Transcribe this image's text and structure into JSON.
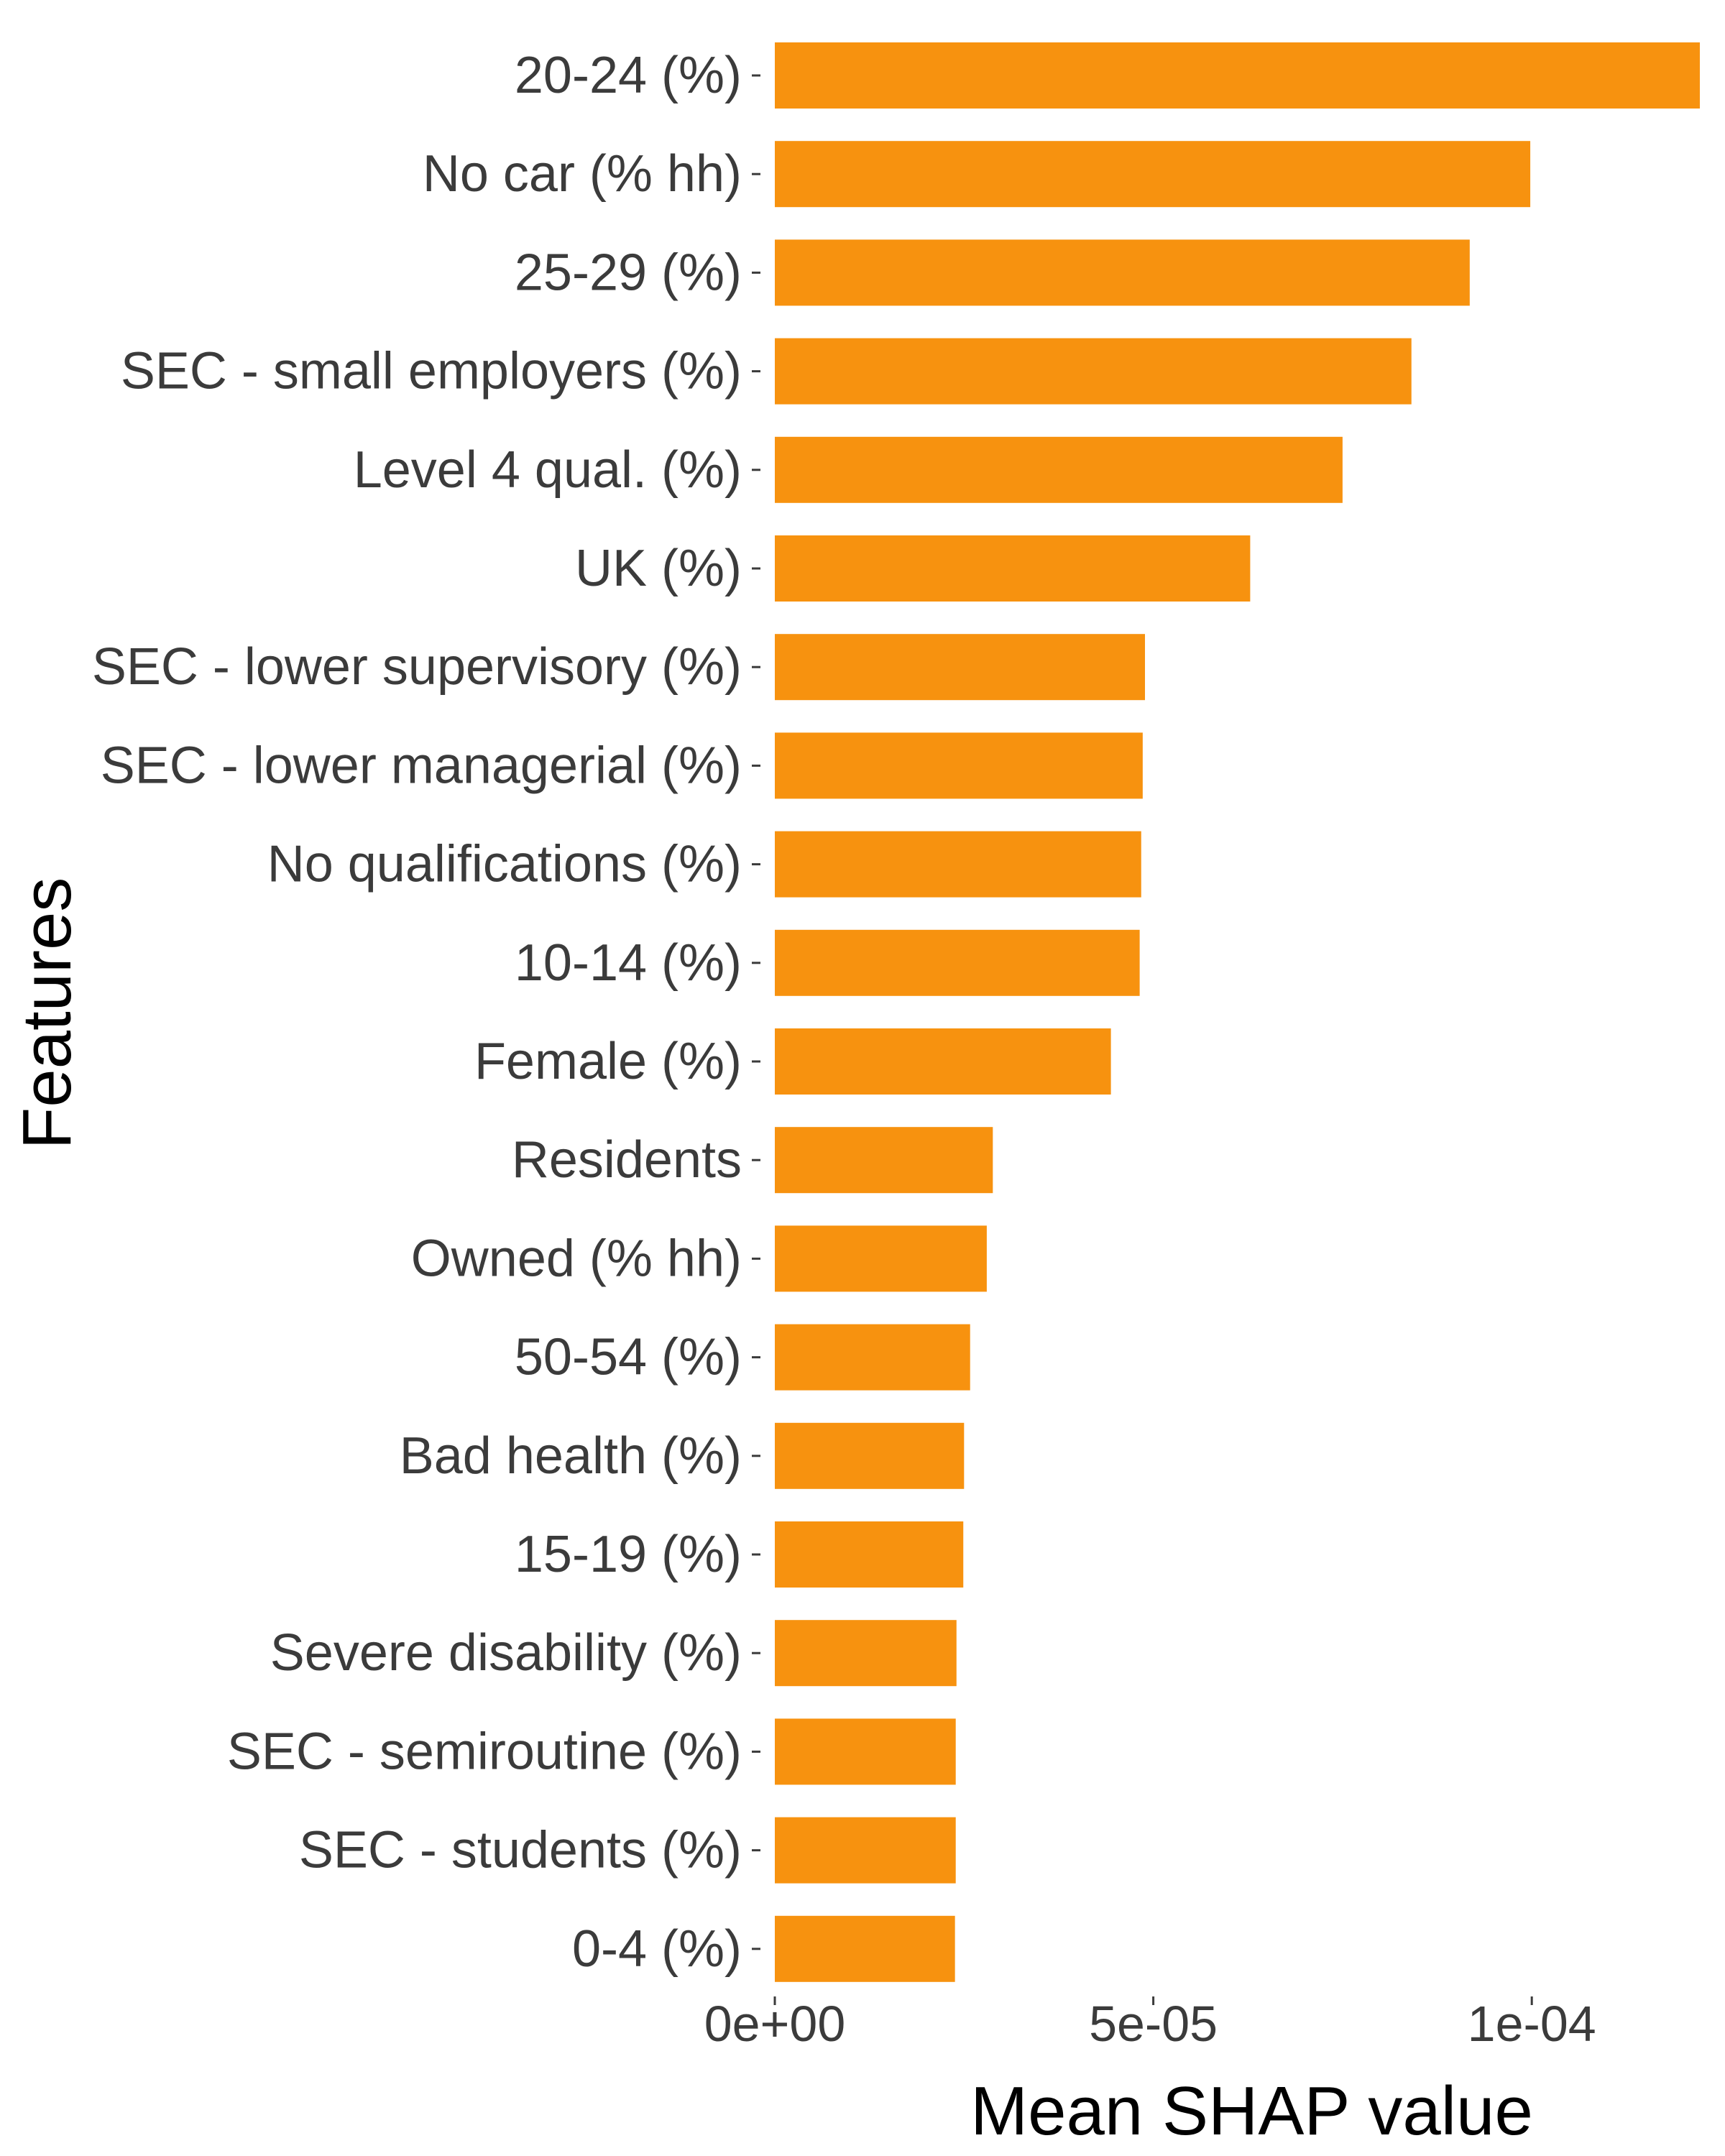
{
  "chart_data": {
    "type": "bar",
    "orientation": "horizontal",
    "title": "",
    "xlabel": "Mean SHAP value",
    "ylabel": "Features",
    "xlim": [
      0,
      0.0001222
    ],
    "x_ticks": [
      {
        "value": 0,
        "label": "0e+00"
      },
      {
        "value": 5e-05,
        "label": "5e-05"
      },
      {
        "value": 0.0001,
        "label": "1e-04"
      }
    ],
    "grid": false,
    "legend": "none",
    "bar_color": "#F7920F",
    "categories": [
      "20-24 (%)",
      "No car (% hh)",
      "25-29 (%)",
      "SEC - small employers (%)",
      "Level 4 qual. (%)",
      "UK (%)",
      "SEC - lower supervisory (%)",
      "SEC - lower managerial (%)",
      "No qualifications (%)",
      "10-14 (%)",
      "Female (%)",
      "Residents",
      "Owned (% hh)",
      "50-54 (%)",
      "Bad health (%)",
      "15-19 (%)",
      "Severe disability (%)",
      "SEC - semiroutine (%)",
      "SEC - students (%)",
      "0-4 (%)"
    ],
    "values": [
      0.0001222,
      9.98e-05,
      9.18e-05,
      8.41e-05,
      7.5e-05,
      6.28e-05,
      4.89e-05,
      4.86e-05,
      4.84e-05,
      4.82e-05,
      4.44e-05,
      2.88e-05,
      2.8e-05,
      2.58e-05,
      2.5e-05,
      2.49e-05,
      2.4e-05,
      2.39e-05,
      2.39e-05,
      2.38e-05
    ]
  }
}
